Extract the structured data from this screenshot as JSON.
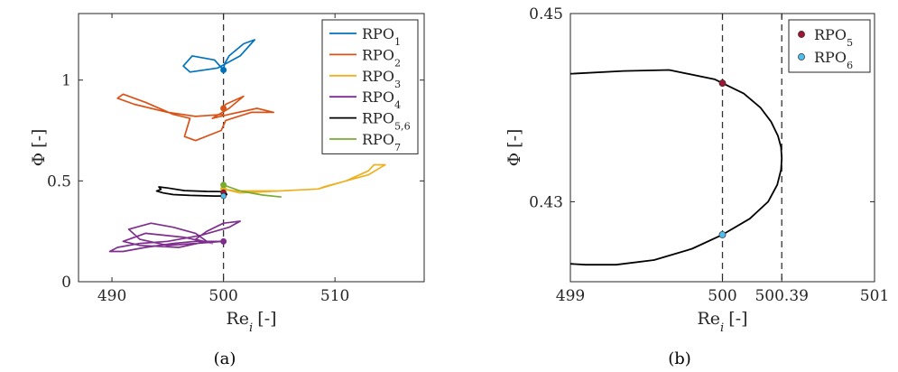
{
  "captions": [
    "(a)",
    "(b)"
  ],
  "chart_data": [
    {
      "type": "line",
      "panel": "(a)",
      "xlabel": {
        "main": "Re",
        "sub": "i",
        "unit": "[-]"
      },
      "ylabel": {
        "main": "Φ",
        "unit": "[-]"
      },
      "xlim": [
        487,
        518
      ],
      "ylim": [
        0,
        1.33
      ],
      "xticks": [
        490,
        500,
        510
      ],
      "yticks": [
        0,
        0.5,
        1
      ],
      "ytick_labels": [
        "0",
        "0.5",
        "1"
      ],
      "grid": false,
      "legend_position": "top-right",
      "reference_lines": [
        {
          "axis": "x",
          "value": 500,
          "style": "dashed"
        }
      ],
      "series": [
        {
          "name": "RPO1",
          "label_main": "RPO",
          "label_sub": "1",
          "color": "#0072BD",
          "x": [
            500,
            499.2,
            497.2,
            496.4,
            497.0,
            499.5,
            501.5,
            502.8,
            501.8,
            500.5,
            500.1,
            500.0
          ],
          "y": [
            1.05,
            1.1,
            1.12,
            1.07,
            1.04,
            1.06,
            1.12,
            1.2,
            1.18,
            1.12,
            1.08,
            1.05
          ],
          "marker": {
            "x": 500,
            "y": 1.05
          }
        },
        {
          "name": "RPO2",
          "label_main": "RPO",
          "label_sub": "2",
          "color": "#D95319",
          "x": [
            500,
            497.5,
            495,
            492,
            490.5,
            491,
            493,
            495.5,
            497.0,
            496.5,
            497.5,
            499.8,
            500.2,
            502.5,
            504.5,
            503.0,
            500.5,
            499.0,
            500.5,
            501.8,
            500.2,
            500.0
          ],
          "y": [
            0.83,
            0.82,
            0.84,
            0.88,
            0.91,
            0.93,
            0.89,
            0.83,
            0.81,
            0.72,
            0.7,
            0.75,
            0.8,
            0.84,
            0.84,
            0.86,
            0.83,
            0.81,
            0.86,
            0.92,
            0.88,
            0.86
          ],
          "marker": {
            "x": 500,
            "y": 0.86
          }
        },
        {
          "name": "RPO3",
          "label_main": "RPO",
          "label_sub": "3",
          "color": "#EDB120",
          "x": [
            500,
            501.5,
            505,
            508.5,
            509.0,
            511,
            513,
            514.2,
            514.5,
            513.5,
            513.0,
            511,
            508.5,
            505,
            501,
            500
          ],
          "y": [
            0.46,
            0.44,
            0.45,
            0.46,
            0.47,
            0.5,
            0.53,
            0.57,
            0.58,
            0.58,
            0.55,
            0.5,
            0.46,
            0.45,
            0.45,
            0.46
          ],
          "marker": {
            "x": 500,
            "y": 0.46
          }
        },
        {
          "name": "RPO4",
          "label_main": "RPO",
          "label_sub": "4",
          "color": "#7E2F8E",
          "x": [
            500,
            497.5,
            495.5,
            493,
            491,
            489.8,
            490.5,
            492.5,
            495,
            498,
            500.5,
            501.5,
            500,
            498.5,
            497.5,
            499,
            496.5,
            493.0,
            491.0,
            492.5,
            496,
            498.5,
            497.5,
            495.5,
            493.5,
            491.5,
            492.5,
            495.0,
            497.5,
            500
          ],
          "y": [
            0.2,
            0.2,
            0.19,
            0.17,
            0.15,
            0.15,
            0.17,
            0.19,
            0.2,
            0.23,
            0.27,
            0.3,
            0.29,
            0.25,
            0.21,
            0.19,
            0.22,
            0.24,
            0.2,
            0.18,
            0.17,
            0.2,
            0.24,
            0.27,
            0.29,
            0.26,
            0.21,
            0.18,
            0.19,
            0.2
          ],
          "marker": {
            "x": 500,
            "y": 0.2
          }
        },
        {
          "name": "RPO5,6",
          "label_main": "RPO",
          "label_sub": "5,6",
          "color": "#000000",
          "x": [
            500,
            499.2,
            497.0,
            495.5,
            494.6,
            494.0,
            494.4,
            494.2,
            495.0,
            496.5,
            498.5,
            499.7,
            500.2,
            500.3,
            500.0
          ],
          "y": [
            0.425,
            0.425,
            0.428,
            0.432,
            0.44,
            0.45,
            0.458,
            0.47,
            0.465,
            0.452,
            0.448,
            0.447,
            0.442,
            0.432,
            0.425
          ],
          "marker": null
        },
        {
          "name": "RPO7",
          "label_main": "RPO",
          "label_sub": "7",
          "color": "#77AC30",
          "x": [
            500,
            501.5,
            503.5,
            505.2
          ],
          "y": [
            0.48,
            0.45,
            0.43,
            0.42
          ],
          "marker": {
            "x": 500,
            "y": 0.48
          }
        }
      ],
      "extra_markers": [
        {
          "x": 500,
          "y": 0.443,
          "color": "#A2142F"
        },
        {
          "x": 500,
          "y": 0.425,
          "color": "#4DBEEE"
        }
      ]
    },
    {
      "type": "line",
      "panel": "(b)",
      "xlabel": {
        "main": "Re",
        "sub": "i",
        "unit": "[-]"
      },
      "ylabel": {
        "main": "Φ",
        "unit": "[-]"
      },
      "xlim": [
        499,
        501
      ],
      "ylim": [
        0.4215,
        0.45
      ],
      "xticks": [
        499,
        500,
        500.39,
        501
      ],
      "xtick_labels": [
        "499",
        "500",
        "500.39",
        "501"
      ],
      "yticks": [
        0.43,
        0.45
      ],
      "ytick_labels": [
        "0.43",
        "0.45"
      ],
      "grid": false,
      "legend_position": "top-right",
      "reference_lines": [
        {
          "axis": "x",
          "value": 500,
          "style": "dashed"
        },
        {
          "axis": "x",
          "value": 500.39,
          "style": "dashed"
        }
      ],
      "curve": {
        "color": "#000000",
        "x": [
          499,
          499.35,
          499.65,
          499.95,
          500.0,
          500.14,
          500.25,
          500.32,
          500.365,
          500.385,
          500.39,
          500.385,
          500.36,
          500.3,
          500.18,
          500.0,
          499.8,
          499.55,
          499.3,
          499.1,
          499
        ],
        "y": [
          0.4436,
          0.4439,
          0.444,
          0.443,
          0.4426,
          0.4415,
          0.44,
          0.4385,
          0.437,
          0.4358,
          0.4346,
          0.4334,
          0.4318,
          0.43,
          0.4282,
          0.4265,
          0.425,
          0.4238,
          0.4233,
          0.4233,
          0.4234
        ]
      },
      "series": [
        {
          "name": "RPO5",
          "label_main": "RPO",
          "label_sub": "5",
          "color": "#A2142F",
          "x": 500,
          "y": 0.4426
        },
        {
          "name": "RPO6",
          "label_main": "RPO",
          "label_sub": "6",
          "color": "#4DBEEE",
          "x": 500,
          "y": 0.4265
        }
      ]
    }
  ]
}
